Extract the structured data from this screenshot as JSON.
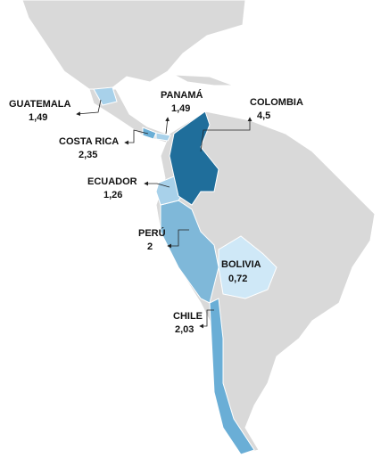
{
  "regions": [
    {
      "name": "GUATEMALA",
      "value": "1,49"
    },
    {
      "name": "PANAMÁ",
      "value": "1,49"
    },
    {
      "name": "COLOMBIA",
      "value": "4,5"
    },
    {
      "name": "COSTA RICA",
      "value": "2,35"
    },
    {
      "name": "ECUADOR",
      "value": "1,26"
    },
    {
      "name": "PERÚ",
      "value": "2"
    },
    {
      "name": "BOLIVIA",
      "value": "0,72"
    },
    {
      "name": "CHILE",
      "value": "2,03"
    }
  ]
}
